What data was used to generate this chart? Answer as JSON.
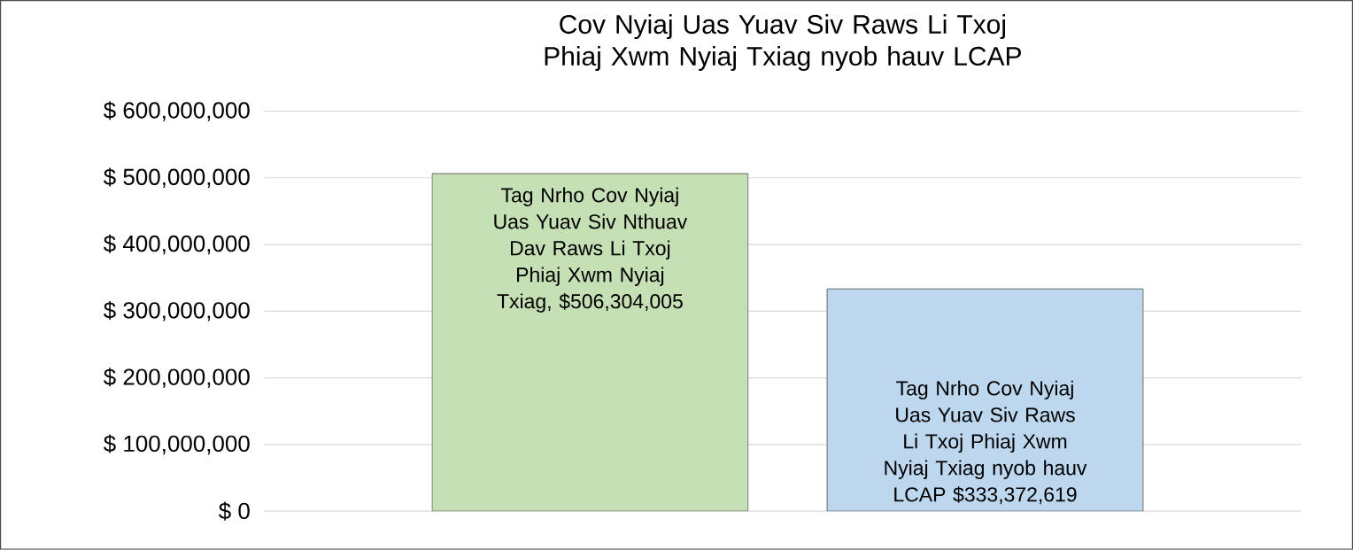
{
  "chart_data": {
    "type": "bar",
    "title": "Cov Nyiaj Uas Yuav Siv Raws Li Txoj Phiaj Xwm Nyiaj Txiag nyob hauv LCAP",
    "categories": [
      null,
      null
    ],
    "values": [
      506304005,
      333372619
    ],
    "colors": [
      "#c5e0b4",
      "#bdd7ee"
    ],
    "value_labels": [
      "Tag Nrho Cov Nyiaj Uas Yuav Siv Nthuav Dav Raws Li Txoj Phiaj Xwm Nyiaj Txiag, $506,304,005",
      "Tag Nrho Cov Nyiaj Uas Yuav Siv Raws Li Txoj Phiaj Xwm Nyiaj Txiag nyob hauv LCAP $333,372,619"
    ],
    "ylim": [
      0,
      600000000
    ],
    "yticks": [
      {
        "value": 0,
        "label": "$ 0"
      },
      {
        "value": 100000000,
        "label": "$ 100,000,000"
      },
      {
        "value": 200000000,
        "label": "$ 200,000,000"
      },
      {
        "value": 300000000,
        "label": "$ 300,000,000"
      },
      {
        "value": 400000000,
        "label": "$ 400,000,000"
      },
      {
        "value": 500000000,
        "label": "$ 500,000,000"
      },
      {
        "value": 600000000,
        "label": "$ 600,000,000"
      }
    ],
    "grid": "y"
  }
}
